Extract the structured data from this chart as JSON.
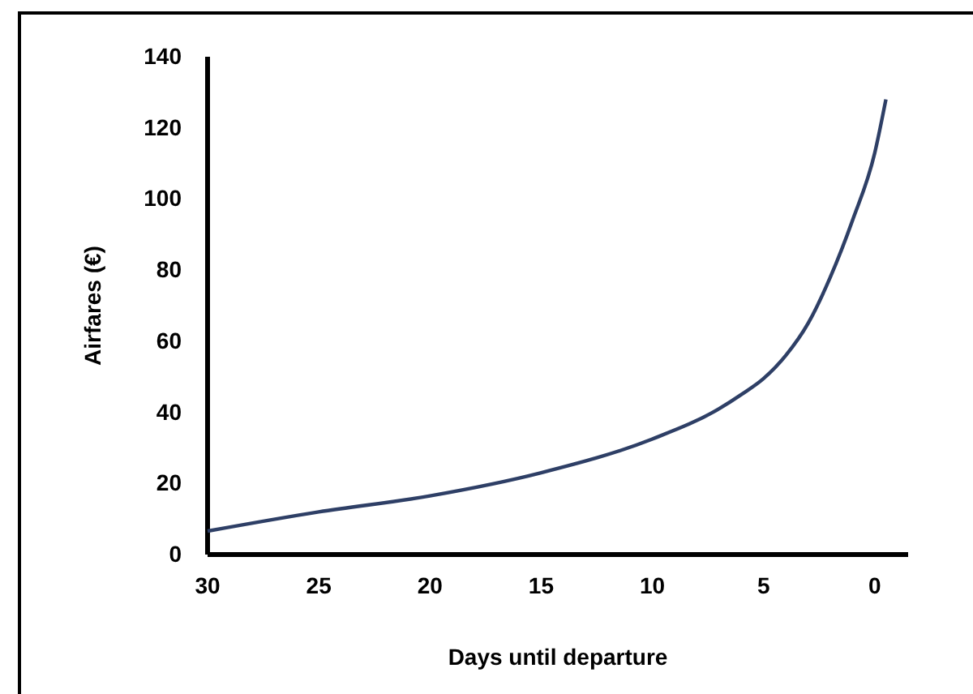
{
  "chart_data": {
    "type": "line",
    "xlabel": "Days until departure",
    "ylabel": "Airfares (€)",
    "xlim": [
      30,
      -1.5
    ],
    "xticks": [
      30,
      25,
      20,
      15,
      10,
      5,
      0
    ],
    "ylim": [
      0,
      140
    ],
    "yticks": [
      0,
      20,
      40,
      60,
      80,
      100,
      120,
      140
    ],
    "grid": false,
    "marker": "none",
    "line_style": "solid",
    "series": [
      {
        "color": "#2e3f66",
        "x": [
          30,
          25,
          20,
          15,
          10,
          7,
          6,
          5,
          4,
          3,
          2,
          1,
          0,
          -0.5
        ],
        "values": [
          6.6,
          12,
          16.5,
          23,
          32.5,
          41,
          45,
          49.5,
          56,
          65,
          78,
          94,
          113,
          128
        ]
      }
    ]
  }
}
